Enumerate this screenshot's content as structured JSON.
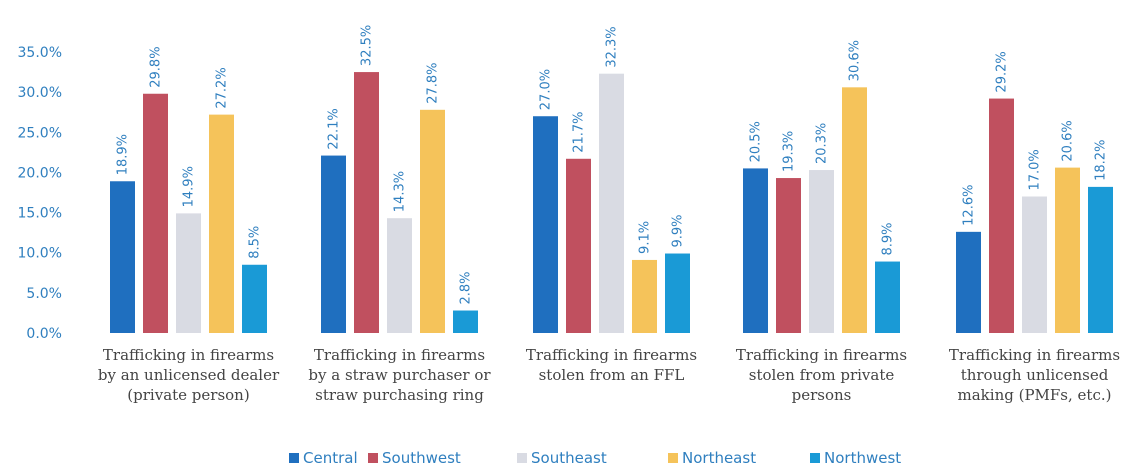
{
  "chart_data": {
    "type": "bar",
    "categories": [
      [
        "Trafficking in firearms",
        "by an unlicensed dealer",
        "(private person)"
      ],
      [
        "Trafficking in firearms",
        "by a straw purchaser or",
        "straw purchasing ring"
      ],
      [
        "Trafficking in firearms",
        "stolen from an FFL"
      ],
      [
        "Trafficking in firearms",
        "stolen from private",
        "persons"
      ],
      [
        "Trafficking in firearms",
        "through unlicensed",
        "making (PMFs, etc.)"
      ]
    ],
    "series": [
      {
        "name": "Central",
        "color": "#1f6fbf",
        "values": [
          18.9,
          22.1,
          27.0,
          20.5,
          12.6
        ],
        "labels": [
          "18.9%",
          "22.1%",
          "27.0%",
          "20.5%",
          "12.6%"
        ]
      },
      {
        "name": "Southwest",
        "color": "#c0505f",
        "values": [
          29.8,
          32.5,
          21.7,
          19.3,
          29.2
        ],
        "labels": [
          "29.8%",
          "32.5%",
          "21.7%",
          "19.3%",
          "29.2%"
        ]
      },
      {
        "name": "Southeast",
        "color": "#d9dbe3",
        "values": [
          14.9,
          14.3,
          32.3,
          20.3,
          17.0
        ],
        "labels": [
          "14.9%",
          "14.3%",
          "32.3%",
          "20.3%",
          "17.0%"
        ]
      },
      {
        "name": "Northeast",
        "color": "#f5c35a",
        "values": [
          27.2,
          27.8,
          9.1,
          30.6,
          20.6
        ],
        "labels": [
          "27.2%",
          "27.8%",
          "9.1%",
          "30.6%",
          "20.6%"
        ]
      },
      {
        "name": "Northwest",
        "color": "#1a9ad6",
        "values": [
          8.5,
          2.8,
          9.9,
          8.9,
          18.2
        ],
        "labels": [
          "8.5%",
          "2.8%",
          "9.9%",
          "8.9%",
          "18.2%"
        ]
      }
    ],
    "yticks": [
      "0.0%",
      "5.0%",
      "10.0%",
      "15.0%",
      "20.0%",
      "25.0%",
      "30.0%",
      "35.0%"
    ],
    "ylim": [
      0,
      35
    ],
    "grid": false,
    "legend_position": "bottom",
    "title": "",
    "xlabel": "",
    "ylabel": ""
  }
}
